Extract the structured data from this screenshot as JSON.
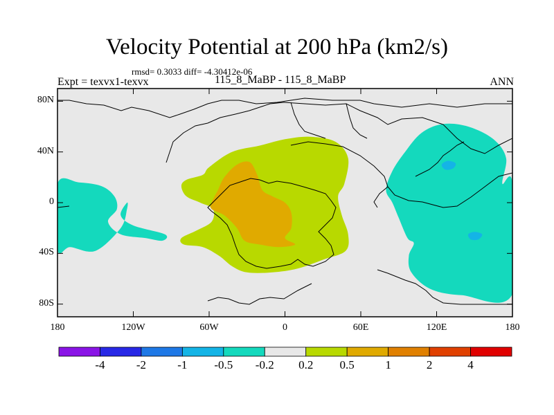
{
  "title": "Velocity Potential at 200 hPa (km2/s)",
  "stats": "rmsd= 0.3033 diff= -4.30412e-06",
  "left_label": "Expt = texvx1-texvx",
  "center_label": "115_8_MaBP - 115_8_MaBP",
  "right_label": "ANN",
  "chart_data": {
    "type": "contour-map",
    "title": "Velocity Potential at 200 hPa (km2/s)",
    "x_axis": {
      "range": [
        -180,
        180
      ],
      "ticks": [
        -180,
        -120,
        -60,
        0,
        60,
        120,
        180
      ],
      "tick_labels": [
        "180",
        "120W",
        "60W",
        "0",
        "60E",
        "120E",
        "180"
      ]
    },
    "y_axis": {
      "range": [
        -90,
        90
      ],
      "ticks": [
        80,
        40,
        0,
        -40,
        -80
      ],
      "tick_labels": [
        "80N",
        "40N",
        "0",
        "40S",
        "80S"
      ]
    },
    "colorbar": {
      "levels": [
        "-4",
        "-2",
        "-1",
        "-0.5",
        "-0.2",
        "0.2",
        "0.5",
        "1",
        "2",
        "4"
      ],
      "colors": [
        "#8a14e6",
        "#2828e6",
        "#1e78e6",
        "#14b4e6",
        "#14d9bd",
        "#e8e8e8",
        "#b8d900",
        "#e0aa00",
        "#e08000",
        "#e04000",
        "#e00000"
      ]
    },
    "regions": [
      {
        "name": "positive-0.2-0.5-africa-atlantic",
        "value_range": [
          0.2,
          0.5
        ],
        "color": "#b8d900",
        "outline": [
          [
            -60,
            28
          ],
          [
            -42,
            40
          ],
          [
            -20,
            45
          ],
          [
            0,
            50
          ],
          [
            20,
            52
          ],
          [
            40,
            48
          ],
          [
            50,
            35
          ],
          [
            47,
            15
          ],
          [
            42,
            5
          ],
          [
            45,
            -10
          ],
          [
            50,
            -25
          ],
          [
            48,
            -38
          ],
          [
            30,
            -45
          ],
          [
            10,
            -52
          ],
          [
            -10,
            -55
          ],
          [
            -30,
            -55
          ],
          [
            -42,
            -50
          ],
          [
            -52,
            -42
          ],
          [
            -65,
            -35
          ],
          [
            -80,
            -33
          ],
          [
            -82,
            -28
          ],
          [
            -70,
            -22
          ],
          [
            -58,
            -15
          ],
          [
            -57,
            -5
          ],
          [
            -67,
            0
          ],
          [
            -78,
            5
          ],
          [
            -82,
            13
          ],
          [
            -78,
            18
          ],
          [
            -65,
            22
          ]
        ]
      },
      {
        "name": "positive-0.5-1-south-atlantic",
        "value_range": [
          0.5,
          1
        ],
        "color": "#e0aa00",
        "outline": [
          [
            -58,
            0
          ],
          [
            -53,
            10
          ],
          [
            -48,
            20
          ],
          [
            -38,
            30
          ],
          [
            -28,
            32
          ],
          [
            -22,
            22
          ],
          [
            -18,
            10
          ],
          [
            -10,
            5
          ],
          [
            0,
            0
          ],
          [
            5,
            -8
          ],
          [
            5,
            -20
          ],
          [
            0,
            -28
          ],
          [
            8,
            -33
          ],
          [
            -5,
            -35
          ],
          [
            -20,
            -33
          ],
          [
            -32,
            -30
          ],
          [
            -38,
            -20
          ],
          [
            -48,
            -10
          ],
          [
            -58,
            -5
          ]
        ]
      },
      {
        "name": "negative-0.2-0.5-west-pacific",
        "value_range": [
          -0.5,
          -0.2
        ],
        "color": "#14d9bd",
        "outline": [
          [
            80,
            10
          ],
          [
            85,
            25
          ],
          [
            95,
            40
          ],
          [
            108,
            55
          ],
          [
            125,
            62
          ],
          [
            145,
            60
          ],
          [
            165,
            50
          ],
          [
            175,
            35
          ],
          [
            172,
            15
          ],
          [
            180,
            15
          ],
          [
            180,
            -72
          ],
          [
            140,
            -73
          ],
          [
            115,
            -68
          ],
          [
            100,
            -55
          ],
          [
            98,
            -42
          ],
          [
            102,
            -32
          ],
          [
            97,
            -28
          ],
          [
            90,
            -12
          ],
          [
            85,
            0
          ]
        ]
      },
      {
        "name": "negative-0.2-0.5-east-pacific",
        "value_range": [
          -0.5,
          -0.2
        ],
        "color": "#14d9bd",
        "outline": [
          [
            -180,
            15
          ],
          [
            -163,
            16
          ],
          [
            -145,
            13
          ],
          [
            -135,
            5
          ],
          [
            -133,
            -5
          ],
          [
            -140,
            -15
          ],
          [
            -130,
            -25
          ],
          [
            -110,
            -28
          ],
          [
            -97,
            -30
          ],
          [
            -95,
            -25
          ],
          [
            -120,
            -18
          ],
          [
            -130,
            -10
          ],
          [
            -125,
            0
          ],
          [
            -125,
            -5
          ],
          [
            -130,
            -20
          ],
          [
            -150,
            -38
          ],
          [
            -170,
            -35
          ],
          [
            -180,
            -37
          ]
        ]
      },
      {
        "name": "negative-0.5-1-spot-north",
        "value_range": [
          -1,
          -0.5
        ],
        "color": "#14b4e6",
        "outline": [
          [
            124,
            30
          ],
          [
            129,
            33
          ],
          [
            135,
            31
          ],
          [
            133,
            27
          ],
          [
            127,
            26
          ]
        ]
      },
      {
        "name": "negative-0.5-1-spot-south",
        "value_range": [
          -1,
          -0.5
        ],
        "color": "#14b4e6",
        "outline": [
          [
            145,
            -25
          ],
          [
            150,
            -23
          ],
          [
            156,
            -25
          ],
          [
            153,
            -29
          ],
          [
            147,
            -29
          ]
        ]
      }
    ],
    "background_value_range": [
      -0.2,
      0.2
    ],
    "background_color": "#e8e8e8"
  }
}
